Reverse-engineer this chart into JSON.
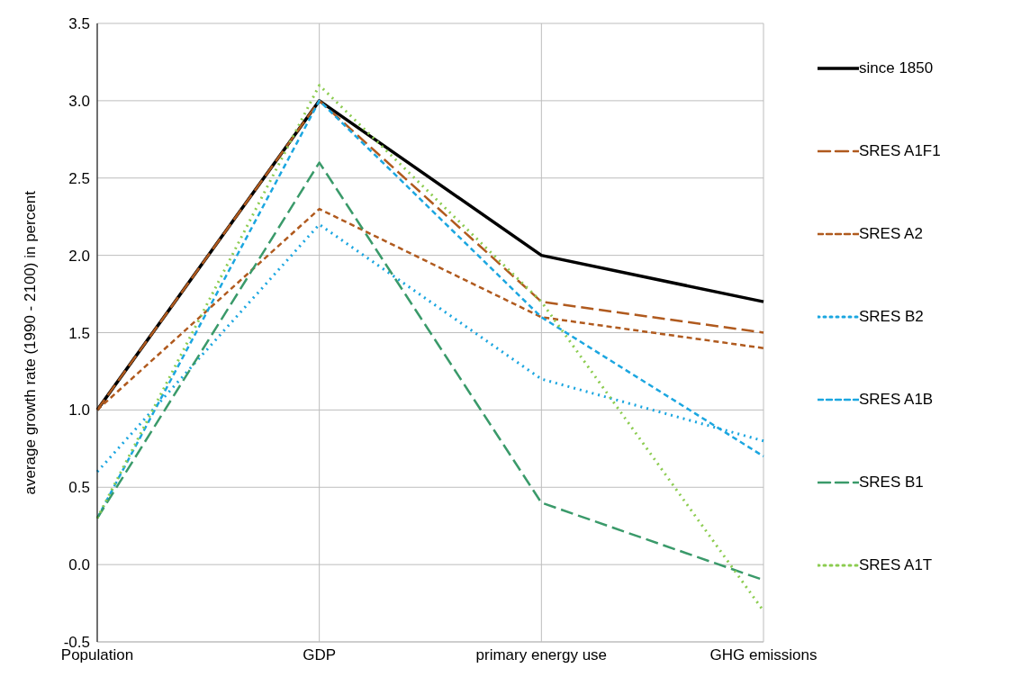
{
  "chart_data": {
    "type": "line",
    "ylabel": "average growth rate (1990 - 2100) in percent",
    "categories": [
      "Population",
      "GDP",
      "primary energy use",
      "GHG emissions"
    ],
    "series": [
      {
        "name": "since 1850",
        "color": "#000000",
        "line_style": "solid",
        "values": [
          1.0,
          3.0,
          2.0,
          1.7
        ]
      },
      {
        "name": "SRES A1F1",
        "color": "#b05a1e",
        "line_style": "dashed",
        "values": [
          1.0,
          3.0,
          1.7,
          1.5
        ]
      },
      {
        "name": "SRES A2",
        "color": "#b05a1e",
        "line_style": "dashed",
        "values": [
          1.0,
          2.3,
          1.6,
          1.4
        ]
      },
      {
        "name": "SRES B2",
        "color": "#1ba6e0",
        "line_style": "dotted",
        "values": [
          0.6,
          2.2,
          1.2,
          0.8
        ]
      },
      {
        "name": "SRES A1B",
        "color": "#1ba6e0",
        "line_style": "dashed",
        "values": [
          0.3,
          3.0,
          1.6,
          0.7
        ]
      },
      {
        "name": "SRES B1",
        "color": "#3a9a6a",
        "line_style": "dashed",
        "values": [
          0.3,
          2.6,
          0.4,
          -0.1
        ]
      },
      {
        "name": "SRES A1T",
        "color": "#8ccc50",
        "line_style": "dotted",
        "values": [
          0.3,
          3.1,
          1.7,
          -0.3
        ]
      }
    ],
    "ylim": [
      -0.5,
      3.5
    ],
    "yticks": [
      -0.5,
      {
        "value": 0,
        "label": "0.0"
      },
      0.5,
      {
        "value": 1,
        "label": "1.0"
      },
      1.5,
      {
        "value": 2,
        "label": "2.0"
      },
      2.5,
      {
        "value": 3,
        "label": "3.0"
      },
      3.5
    ],
    "grid": true,
    "legend": "right",
    "marker": "none"
  }
}
